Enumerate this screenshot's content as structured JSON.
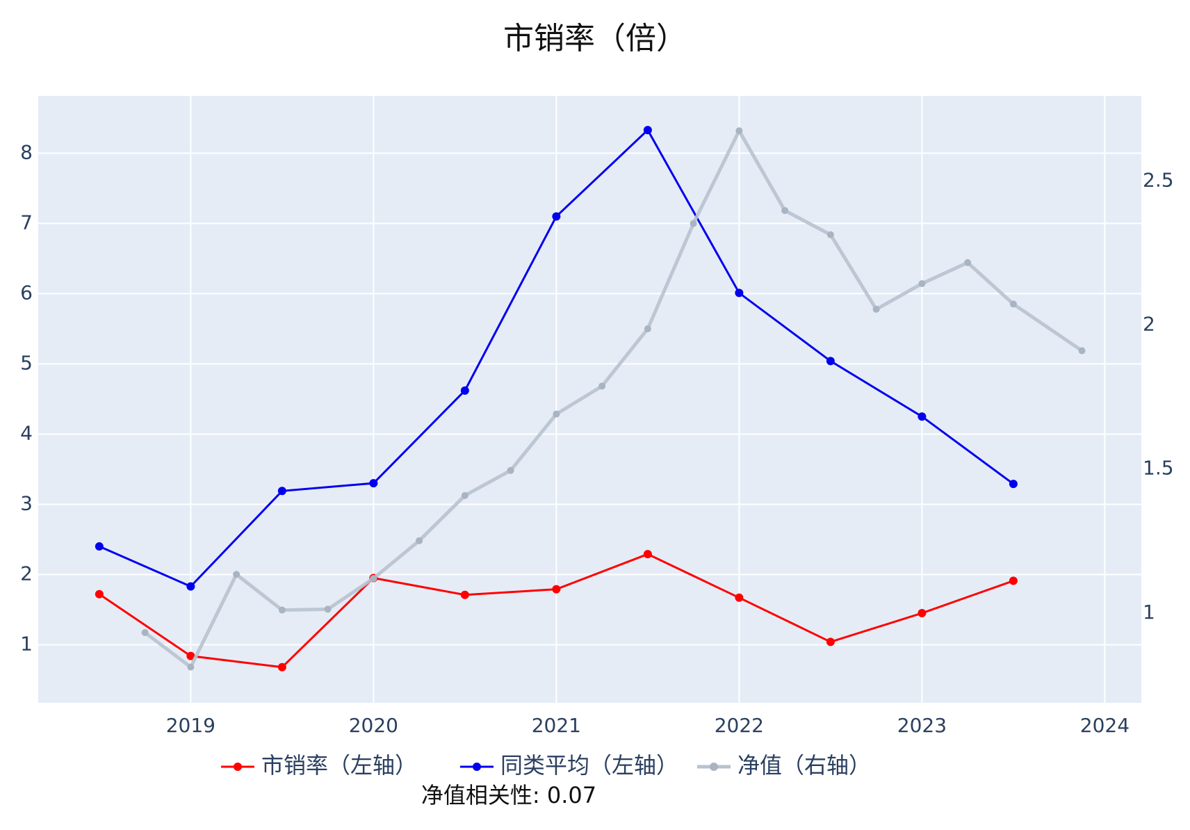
{
  "chart_data": {
    "type": "line",
    "title": "市销率（倍）",
    "annotation": "净值相关性: 0.07",
    "xlim": [
      2018.166,
      2024.2
    ],
    "xticks": [
      2019,
      2020,
      2021,
      2022,
      2023,
      2024
    ],
    "ylim": [
      0.173,
      8.816
    ],
    "yticks": [
      1,
      2,
      3,
      4,
      5,
      6,
      7,
      8
    ],
    "y2lim": [
      0.688,
      2.796
    ],
    "y2ticks": [
      1,
      1.5,
      2,
      2.5
    ],
    "grid": true,
    "series": [
      {
        "name": "市销率（左轴）",
        "color": "#ff0000",
        "x": [
          2018.5,
          2019,
          2019.5,
          2020,
          2020.5,
          2021,
          2021.5,
          2022,
          2022.5,
          2023,
          2023.5
        ],
        "values": [
          1.72,
          0.84,
          0.68,
          1.95,
          1.71,
          1.79,
          2.29,
          1.67,
          1.04,
          1.45,
          1.91
        ]
      },
      {
        "name": "同类平均（左轴）",
        "color": "#0000ee",
        "x": [
          2018.5,
          2019,
          2019.5,
          2020,
          2020.5,
          2021,
          2021.5,
          2022,
          2022.5,
          2023,
          2023.5
        ],
        "values": [
          2.4,
          1.83,
          3.19,
          3.3,
          4.62,
          7.1,
          8.33,
          6.01,
          5.04,
          4.25,
          3.29
        ]
      },
      {
        "name": "净值（右轴）",
        "color": "#b8c2cf",
        "axis": "y2",
        "x": [
          2018.75,
          2019,
          2019.25,
          2019.5,
          2019.75,
          2020,
          2020.25,
          2020.5,
          2020.75,
          2021,
          2021.25,
          2021.5,
          2021.75,
          2022,
          2022.25,
          2022.5,
          2022.75,
          2023,
          2023.25,
          2023.5,
          2023.875
        ],
        "values": [
          0.932,
          0.812,
          1.134,
          1.01,
          1.013,
          1.12,
          1.251,
          1.408,
          1.495,
          1.691,
          1.788,
          1.987,
          2.353,
          2.675,
          2.398,
          2.314,
          2.055,
          2.144,
          2.217,
          2.073,
          1.911
        ]
      }
    ]
  }
}
